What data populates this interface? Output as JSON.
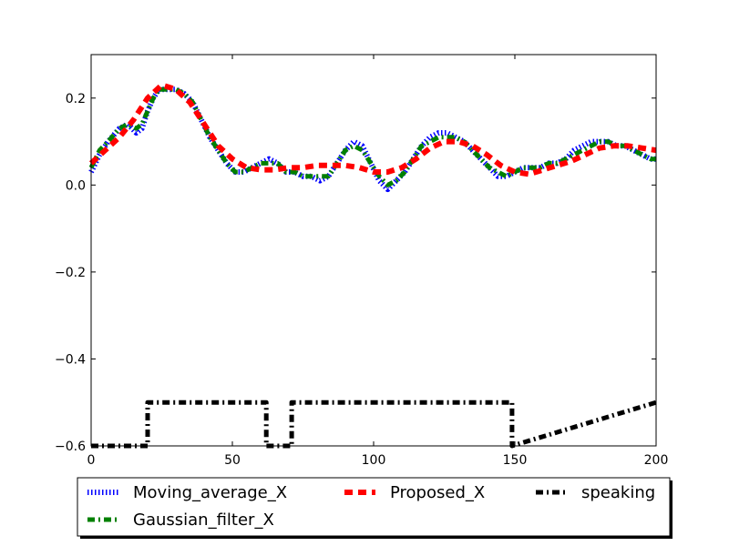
{
  "chart_data": {
    "type": "line",
    "title": "",
    "xlabel": "",
    "ylabel": "",
    "xlim": [
      0,
      200
    ],
    "ylim": [
      -0.6,
      0.3
    ],
    "xticks": [
      0,
      50,
      100,
      150,
      200
    ],
    "xtick_labels": [
      "0",
      "50",
      "100",
      "150",
      "200"
    ],
    "yticks": [
      -0.6,
      -0.4,
      -0.2,
      0.0,
      0.2
    ],
    "ytick_labels": [
      "−0.6",
      "−0.4",
      "−0.2",
      "0.0",
      "0.2"
    ],
    "grid": false,
    "legend_position": "below plot, centered",
    "series": [
      {
        "name": "Moving_average_X",
        "color": "#0000ff",
        "style": "dotted",
        "x": [
          0,
          3,
          6,
          10,
          13,
          16,
          18,
          20,
          22,
          24,
          27,
          30,
          33,
          36,
          39,
          42,
          45,
          48,
          51,
          54,
          57,
          60,
          63,
          66,
          69,
          72,
          75,
          78,
          81,
          84,
          87,
          90,
          93,
          96,
          99,
          102,
          105,
          108,
          111,
          114,
          117,
          120,
          123,
          126,
          129,
          132,
          135,
          138,
          141,
          144,
          147,
          150,
          153,
          156,
          159,
          162,
          165,
          168,
          171,
          174,
          177,
          180,
          183,
          186,
          189,
          192,
          195,
          198,
          200
        ],
        "y": [
          0.03,
          0.07,
          0.1,
          0.13,
          0.14,
          0.12,
          0.13,
          0.17,
          0.2,
          0.22,
          0.22,
          0.22,
          0.21,
          0.19,
          0.15,
          0.11,
          0.08,
          0.05,
          0.03,
          0.03,
          0.04,
          0.05,
          0.06,
          0.05,
          0.03,
          0.03,
          0.02,
          0.02,
          0.01,
          0.02,
          0.05,
          0.08,
          0.1,
          0.09,
          0.05,
          0.01,
          -0.01,
          0.01,
          0.03,
          0.06,
          0.09,
          0.11,
          0.12,
          0.12,
          0.11,
          0.1,
          0.08,
          0.06,
          0.04,
          0.02,
          0.02,
          0.03,
          0.04,
          0.04,
          0.04,
          0.05,
          0.05,
          0.06,
          0.08,
          0.09,
          0.1,
          0.1,
          0.1,
          0.09,
          0.09,
          0.08,
          0.07,
          0.06,
          0.06
        ]
      },
      {
        "name": "Gaussian_filter_X",
        "color": "#008000",
        "style": "dashdot",
        "x": [
          0,
          3,
          6,
          10,
          13,
          16,
          18,
          20,
          22,
          24,
          27,
          30,
          33,
          36,
          39,
          42,
          45,
          48,
          51,
          54,
          57,
          60,
          63,
          66,
          69,
          72,
          75,
          78,
          81,
          84,
          87,
          90,
          93,
          96,
          99,
          102,
          105,
          108,
          111,
          114,
          117,
          120,
          123,
          126,
          129,
          132,
          135,
          138,
          141,
          144,
          147,
          150,
          153,
          156,
          159,
          162,
          165,
          168,
          171,
          174,
          177,
          180,
          183,
          186,
          189,
          192,
          195,
          198,
          200
        ],
        "y": [
          0.04,
          0.08,
          0.1,
          0.13,
          0.14,
          0.13,
          0.14,
          0.17,
          0.2,
          0.22,
          0.22,
          0.22,
          0.21,
          0.19,
          0.15,
          0.11,
          0.08,
          0.05,
          0.03,
          0.03,
          0.04,
          0.05,
          0.05,
          0.05,
          0.03,
          0.03,
          0.02,
          0.02,
          0.02,
          0.02,
          0.05,
          0.08,
          0.09,
          0.08,
          0.05,
          0.02,
          0.0,
          0.01,
          0.03,
          0.06,
          0.09,
          0.1,
          0.11,
          0.11,
          0.11,
          0.1,
          0.08,
          0.06,
          0.04,
          0.03,
          0.02,
          0.03,
          0.04,
          0.04,
          0.04,
          0.05,
          0.05,
          0.06,
          0.07,
          0.08,
          0.09,
          0.1,
          0.1,
          0.09,
          0.09,
          0.08,
          0.07,
          0.06,
          0.06
        ]
      },
      {
        "name": "Proposed_X",
        "color": "#ff0000",
        "style": "dashed",
        "x": [
          0,
          5,
          10,
          15,
          20,
          25,
          30,
          35,
          40,
          45,
          50,
          55,
          60,
          65,
          70,
          75,
          80,
          85,
          90,
          95,
          100,
          105,
          110,
          115,
          120,
          125,
          130,
          135,
          140,
          145,
          150,
          155,
          160,
          165,
          170,
          175,
          180,
          185,
          190,
          195,
          200
        ],
        "y": [
          0.05,
          0.08,
          0.11,
          0.15,
          0.2,
          0.23,
          0.22,
          0.19,
          0.14,
          0.09,
          0.06,
          0.04,
          0.035,
          0.035,
          0.04,
          0.04,
          0.045,
          0.045,
          0.045,
          0.04,
          0.03,
          0.03,
          0.04,
          0.06,
          0.085,
          0.1,
          0.1,
          0.09,
          0.07,
          0.045,
          0.03,
          0.025,
          0.035,
          0.045,
          0.055,
          0.07,
          0.085,
          0.09,
          0.09,
          0.085,
          0.08
        ]
      },
      {
        "name": "speaking",
        "color": "#000000",
        "style": "dashdot",
        "x": [
          0,
          20,
          20,
          62,
          62,
          71,
          71,
          149,
          149,
          200
        ],
        "y": [
          -0.6,
          -0.6,
          -0.5,
          -0.5,
          -0.6,
          -0.6,
          -0.5,
          -0.5,
          -0.6,
          -0.5
        ]
      }
    ]
  }
}
